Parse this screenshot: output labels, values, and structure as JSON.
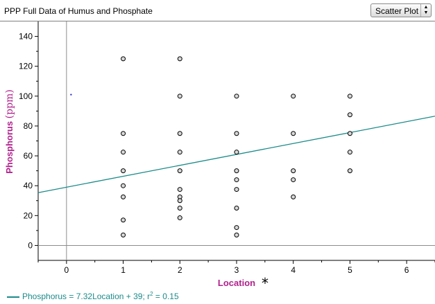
{
  "header": {
    "title": "PPP Full Data of Humus and Phosphate",
    "plot_type": "Scatter Plot",
    "plot_type_icon": "up-down-chevron-icon"
  },
  "marker": "*",
  "chart_data": {
    "type": "scatter",
    "title": "PPP Full Data of Humus and Phosphate",
    "xlabel": "Location",
    "ylabel_main": "Phosphorus",
    "ylabel_unit": "(ppm)",
    "xlim": [
      -0.5,
      6.5
    ],
    "ylim": [
      -10,
      150
    ],
    "x_ticks": [
      0,
      1,
      2,
      3,
      4,
      5,
      6
    ],
    "y_ticks": [
      0,
      20,
      40,
      60,
      80,
      100,
      120,
      140
    ],
    "points": [
      [
        1,
        125
      ],
      [
        1,
        75
      ],
      [
        1,
        62.5
      ],
      [
        1,
        50
      ],
      [
        1,
        40
      ],
      [
        1,
        32.5
      ],
      [
        1,
        17
      ],
      [
        1,
        7
      ],
      [
        2,
        125
      ],
      [
        2,
        100
      ],
      [
        2,
        75
      ],
      [
        2,
        62.5
      ],
      [
        2,
        50
      ],
      [
        2,
        37.5
      ],
      [
        2,
        32.5
      ],
      [
        2,
        30
      ],
      [
        2,
        25
      ],
      [
        2,
        18.5
      ],
      [
        3,
        100
      ],
      [
        3,
        75
      ],
      [
        3,
        62.5
      ],
      [
        3,
        50
      ],
      [
        3,
        44
      ],
      [
        3,
        37.5
      ],
      [
        3,
        25
      ],
      [
        3,
        12
      ],
      [
        3,
        7
      ],
      [
        4,
        100
      ],
      [
        4,
        75
      ],
      [
        4,
        50
      ],
      [
        4,
        44
      ],
      [
        4,
        32.5
      ],
      [
        5,
        100
      ],
      [
        5,
        87.5
      ],
      [
        5,
        75
      ],
      [
        5,
        62.5
      ],
      [
        5,
        50
      ]
    ],
    "stray_point": [
      0.08,
      101
    ],
    "regression": {
      "slope": 7.32,
      "intercept": 39,
      "r2": 0.15,
      "legend_main": "Phosphorus = 7.32Location + 39; r",
      "legend_sup": "2",
      "legend_tail": " = 0.15"
    },
    "colors": {
      "axis_title": "#b0218c",
      "regression": "#1b8a8a",
      "stray_point": "#3333cc"
    }
  }
}
